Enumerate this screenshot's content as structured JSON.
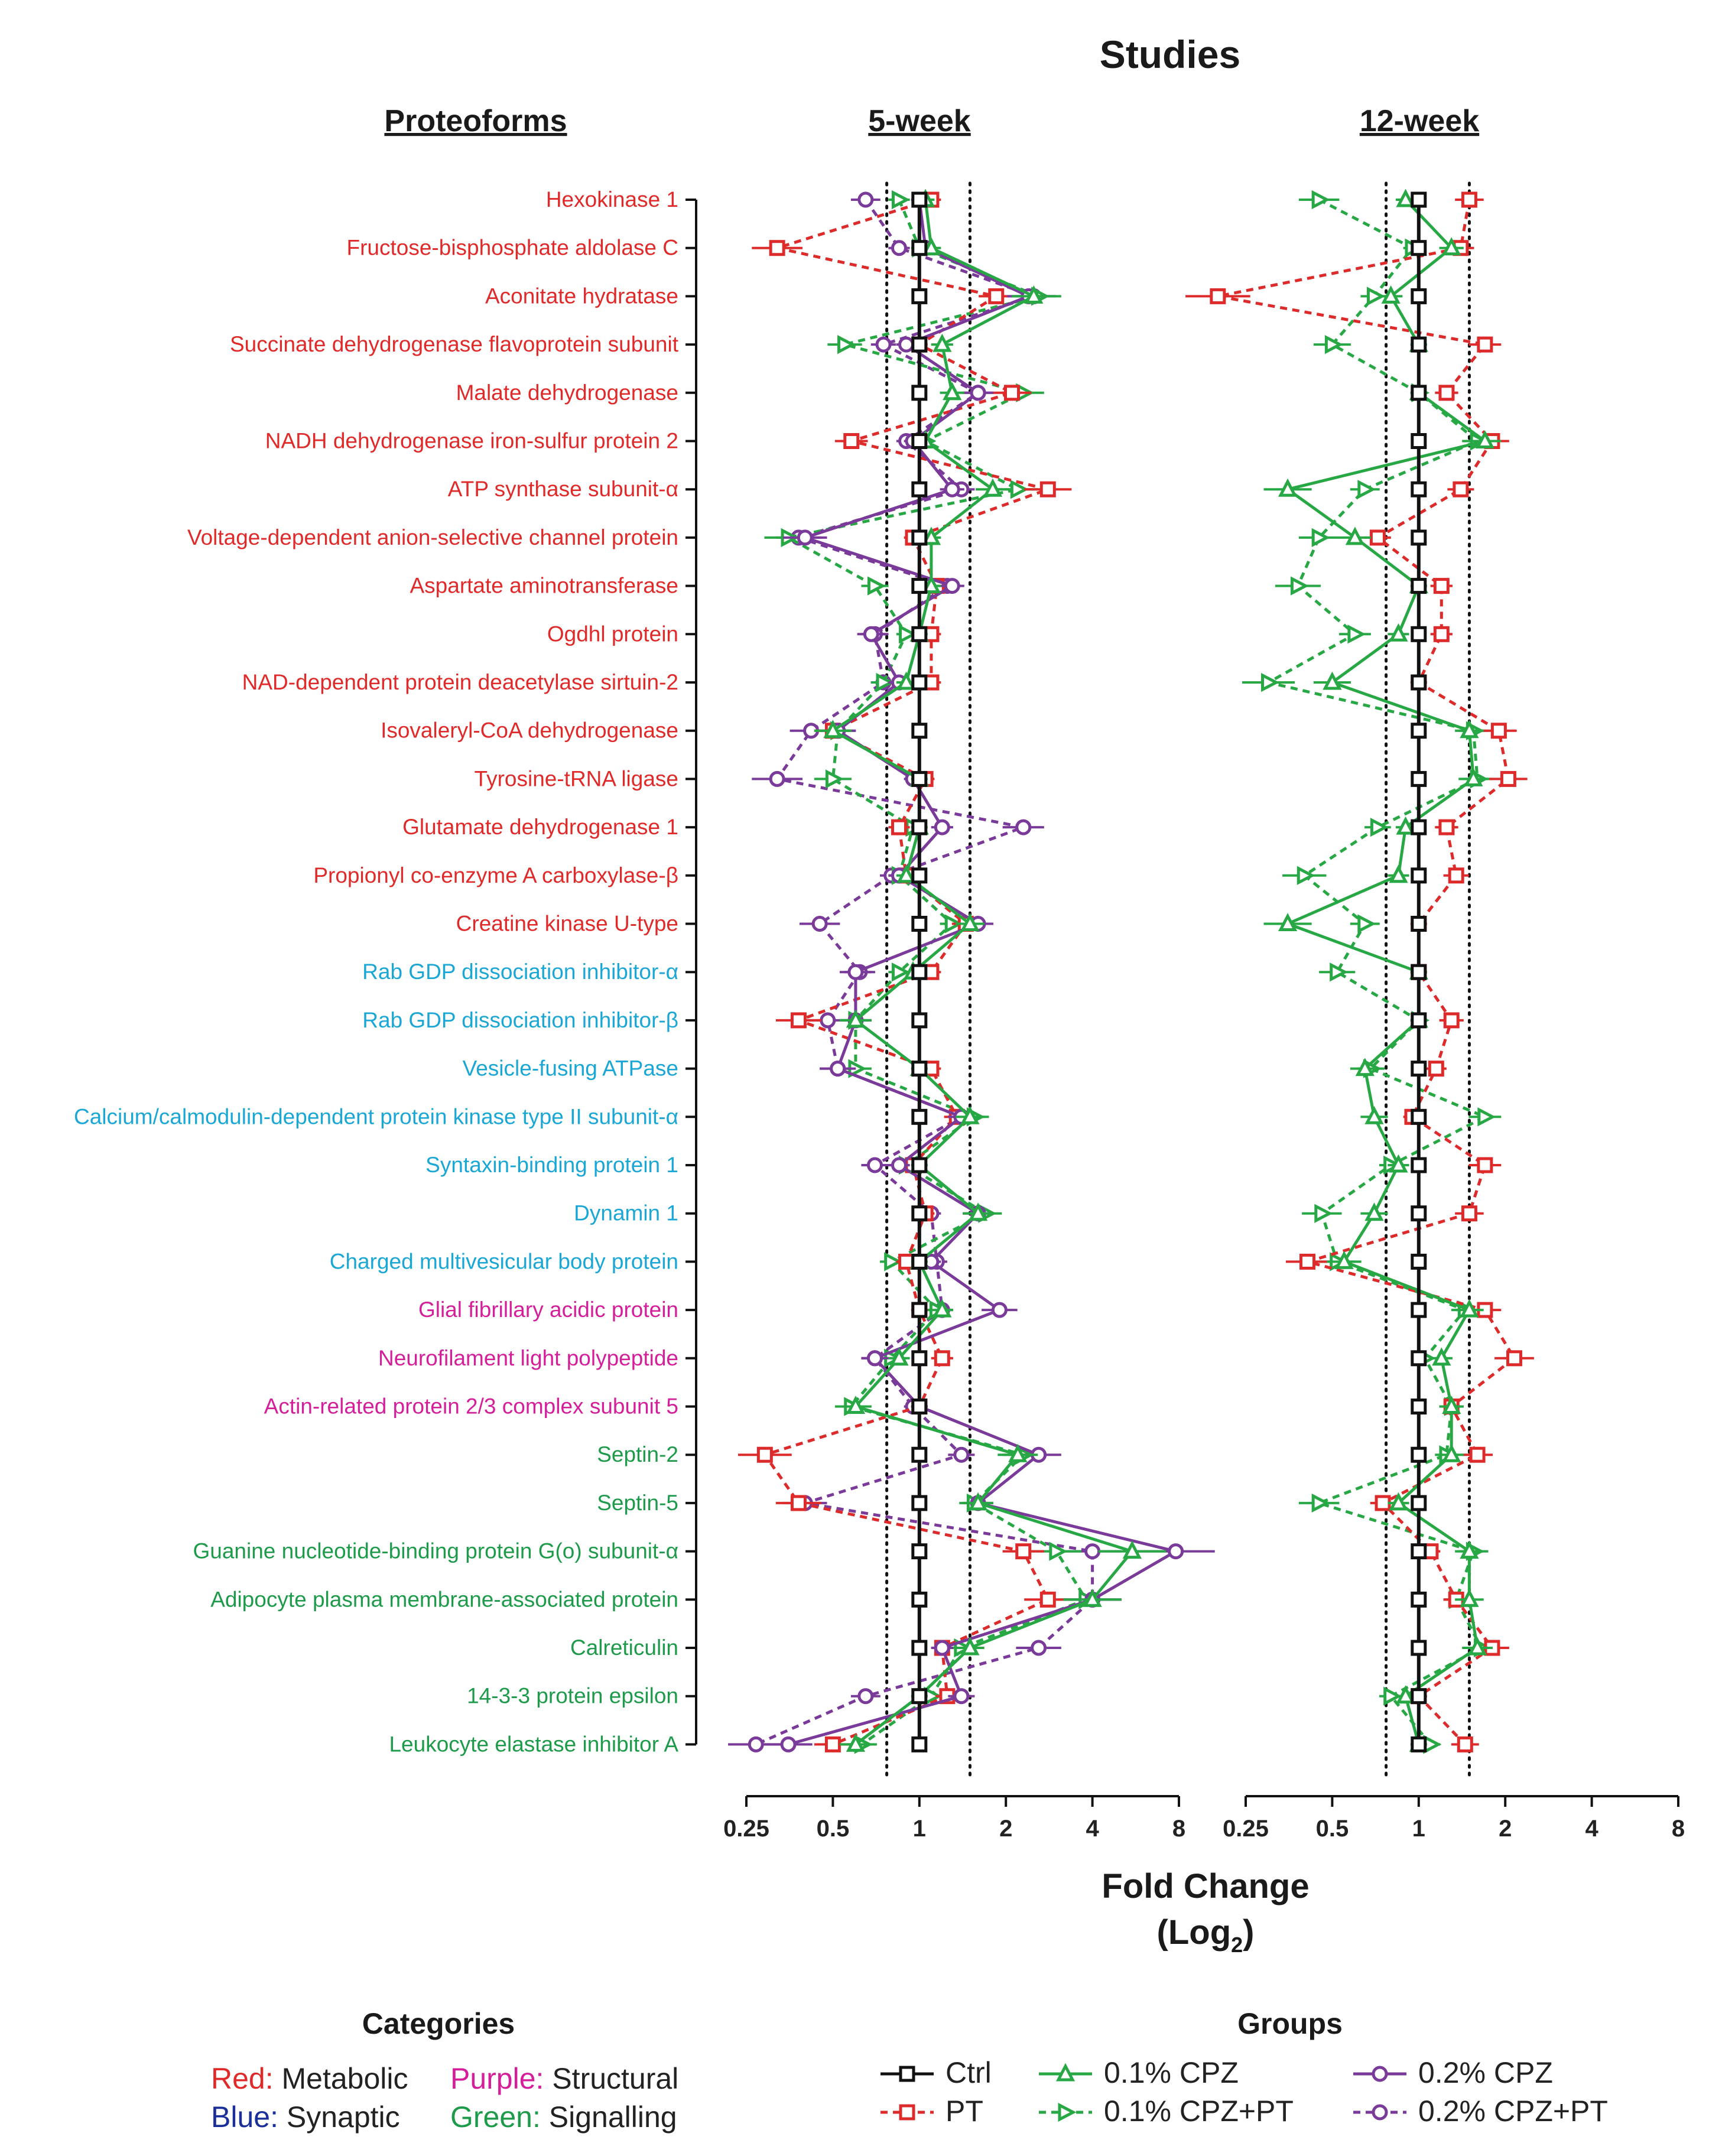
{
  "figure_title": "Studies",
  "row_header": "Proteoforms",
  "axis_title_line1": "Fold Change",
  "axis_title_line2_main": "(Log",
  "axis_title_line2_sub": "2",
  "axis_title_line2_end": ")",
  "colors": {
    "metabolic": "#e02a2a",
    "synaptic": "#1ba7d6",
    "structural": "#d41e9a",
    "signalling": "#1e9b4a",
    "ctrl": "#111111",
    "pt": "#dd2b2b",
    "cpz01": "#27a845",
    "cpz02": "#7a3a99"
  },
  "categories_legend": {
    "title": "Categories",
    "items": [
      {
        "key": "Red:",
        "text": " Metabolic",
        "color": "#e02a2a"
      },
      {
        "key": "Purple:",
        "text": " Structural",
        "color": "#d41e9a"
      },
      {
        "key": "Blue:",
        "text": " Synaptic",
        "color": "#1b2f9a"
      },
      {
        "key": "Green:",
        "text": " Signalling",
        "color": "#1e9b4a"
      }
    ]
  },
  "groups_legend": {
    "title": "Groups",
    "items": [
      "Ctrl",
      "PT",
      "0.1% CPZ",
      "0.1% CPZ+PT",
      "0.2% CPZ",
      "0.2% CPZ+PT"
    ]
  },
  "chart_data": [
    {
      "type": "scatter",
      "title": "5-week",
      "xlabel": "Fold Change (Log2)",
      "xscale": "log2",
      "xlim": [
        0.25,
        8
      ],
      "xticks": [
        "0.25",
        "0.5",
        "1",
        "2",
        "4",
        "8"
      ],
      "threshold_lines": [
        0.77,
        1.5
      ],
      "categories": [
        "Hexokinase 1",
        "Fructose-bisphosphate aldolase C",
        "Aconitate hydratase",
        "Succinate dehydrogenase flavoprotein subunit",
        "Malate dehydrogenase",
        "NADH dehydrogenase iron-sulfur protein 2",
        "ATP synthase subunit-α",
        "Voltage-dependent anion-selective channel protein",
        "Aspartate aminotransferase",
        "Ogdhl protein",
        "NAD-dependent protein deacetylase sirtuin-2",
        "Isovaleryl-CoA dehydrogenase",
        "Tyrosine-tRNA ligase",
        "Glutamate dehydrogenase 1",
        "Propionyl co-enzyme A carboxylase-β",
        "Creatine kinase U-type",
        "Rab GDP dissociation inhibitor-α",
        "Rab GDP dissociation inhibitor-β",
        "Vesicle-fusing ATPase",
        "Calcium/calmodulin-dependent protein kinase type II subunit-α",
        "Syntaxin-binding protein 1",
        "Dynamin 1",
        "Charged multivesicular body protein",
        "Glial fibrillary acidic protein",
        "Neurofilament light polypeptide",
        "Actin-related protein 2/3 complex subunit 5",
        "Septin-2",
        "Septin-5",
        "Guanine nucleotide-binding protein G(o) subunit-α",
        "Adipocyte plasma membrane-associated protein",
        "Calreticulin",
        "14-3-3 protein epsilon",
        "Leukocyte elastase inhibitor A"
      ],
      "series": [
        {
          "name": "Ctrl",
          "values": [
            1,
            1,
            1,
            1,
            1,
            1,
            1,
            1,
            1,
            1,
            1,
            1,
            1,
            1,
            1,
            1,
            1,
            1,
            1,
            1,
            1,
            1,
            1,
            1,
            1,
            1,
            1,
            1,
            1,
            1,
            1,
            1,
            1
          ]
        },
        {
          "name": "PT",
          "values": [
            1.1,
            0.32,
            1.85,
            1.0,
            2.1,
            0.58,
            2.8,
            0.95,
            1.15,
            1.1,
            1.1,
            0.5,
            1.05,
            0.85,
            0.9,
            1.45,
            1.1,
            0.38,
            1.1,
            1.35,
            0.95,
            1.05,
            0.9,
            1.0,
            1.2,
            1.0,
            0.29,
            0.38,
            2.3,
            2.8,
            1.2,
            1.25,
            0.5
          ]
        },
        {
          "name": "0.1% CPZ",
          "values": [
            1.05,
            1.1,
            2.5,
            1.2,
            1.3,
            1.05,
            1.8,
            1.1,
            1.1,
            1.0,
            0.9,
            0.5,
            1.0,
            1.0,
            0.9,
            1.5,
            0.95,
            0.6,
            1.0,
            1.5,
            1.0,
            1.6,
            1.0,
            1.2,
            0.85,
            0.6,
            2.2,
            1.6,
            5.5,
            4.0,
            1.5,
            1.0,
            0.6
          ]
        },
        {
          "name": "0.1% CPZ+PT",
          "values": [
            0.85,
            1.0,
            2.6,
            0.55,
            2.3,
            1.05,
            2.2,
            0.35,
            0.7,
            0.9,
            0.75,
            0.52,
            0.5,
            0.95,
            0.85,
            1.3,
            0.85,
            0.6,
            0.6,
            1.55,
            0.9,
            1.7,
            0.8,
            1.15,
            0.8,
            0.58,
            2.3,
            1.55,
            3.0,
            3.8,
            1.4,
            1.1,
            0.63
          ]
        },
        {
          "name": "0.2% CPZ",
          "values": [
            1.0,
            1.05,
            2.4,
            0.9,
            1.6,
            0.95,
            1.3,
            0.4,
            1.3,
            0.68,
            0.85,
            0.52,
            0.95,
            1.2,
            0.85,
            1.6,
            0.6,
            0.6,
            0.52,
            1.4,
            0.85,
            1.6,
            1.1,
            1.9,
            0.7,
            1.0,
            2.6,
            1.6,
            7.8,
            4.0,
            1.2,
            1.4,
            0.35
          ]
        },
        {
          "name": "0.2% CPZ+PT",
          "values": [
            0.65,
            0.85,
            2.5,
            0.75,
            1.6,
            0.9,
            1.4,
            0.38,
            1.25,
            0.7,
            0.75,
            0.42,
            0.32,
            2.3,
            0.8,
            0.45,
            0.62,
            0.48,
            0.52,
            1.4,
            0.7,
            1.1,
            1.15,
            1.2,
            0.7,
            0.95,
            1.4,
            0.4,
            4.0,
            4.0,
            2.6,
            0.65,
            0.27
          ]
        }
      ]
    },
    {
      "type": "scatter",
      "title": "12-week",
      "xlabel": "Fold Change (Log2)",
      "xscale": "log2",
      "xlim": [
        0.25,
        8
      ],
      "xticks": [
        "0.25",
        "0.5",
        "1",
        "2",
        "4",
        "8"
      ],
      "threshold_lines": [
        0.77,
        1.5
      ],
      "categories": [
        "Hexokinase 1",
        "Fructose-bisphosphate aldolase C",
        "Aconitate hydratase",
        "Succinate dehydrogenase flavoprotein subunit",
        "Malate dehydrogenase",
        "NADH dehydrogenase iron-sulfur protein 2",
        "ATP synthase subunit-α",
        "Voltage-dependent anion-selective channel protein",
        "Aspartate aminotransferase",
        "Ogdhl protein",
        "NAD-dependent protein deacetylase sirtuin-2",
        "Isovaleryl-CoA dehydrogenase",
        "Tyrosine-tRNA ligase",
        "Glutamate dehydrogenase 1",
        "Propionyl co-enzyme A carboxylase-β",
        "Creatine kinase U-type",
        "Rab GDP dissociation inhibitor-α",
        "Rab GDP dissociation inhibitor-β",
        "Vesicle-fusing ATPase",
        "Calcium/calmodulin-dependent protein kinase type II subunit-α",
        "Syntaxin-binding protein 1",
        "Dynamin 1",
        "Charged multivesicular body protein",
        "Glial fibrillary acidic protein",
        "Neurofilament light polypeptide",
        "Actin-related protein 2/3 complex subunit 5",
        "Septin-2",
        "Septin-5",
        "Guanine nucleotide-binding protein G(o) subunit-α",
        "Adipocyte plasma membrane-associated protein",
        "Calreticulin",
        "14-3-3 protein epsilon",
        "Leukocyte elastase inhibitor A"
      ],
      "series": [
        {
          "name": "Ctrl",
          "values": [
            1,
            1,
            1,
            1,
            1,
            1,
            1,
            1,
            1,
            1,
            1,
            1,
            1,
            1,
            1,
            1,
            1,
            1,
            1,
            1,
            1,
            1,
            1,
            1,
            1,
            1,
            1,
            1,
            1,
            1,
            1,
            1,
            1
          ]
        },
        {
          "name": "PT",
          "values": [
            1.5,
            1.4,
            0.2,
            1.7,
            1.25,
            1.8,
            1.4,
            0.72,
            1.2,
            1.2,
            1.0,
            1.9,
            2.05,
            1.25,
            1.35,
            1.0,
            1.0,
            1.3,
            1.15,
            0.95,
            1.7,
            1.5,
            0.41,
            1.7,
            2.15,
            1.3,
            1.6,
            0.75,
            1.1,
            1.35,
            1.8,
            1.0,
            1.45
          ]
        },
        {
          "name": "0.1% CPZ",
          "values": [
            0.9,
            1.3,
            0.8,
            1.0,
            1.0,
            1.7,
            0.35,
            0.6,
            1.0,
            0.85,
            0.5,
            1.5,
            1.55,
            0.9,
            0.85,
            0.35,
            1.0,
            1.0,
            0.65,
            0.7,
            0.85,
            0.7,
            0.55,
            1.5,
            1.2,
            1.3,
            1.3,
            0.85,
            1.5,
            1.5,
            1.6,
            0.9,
            1.0
          ]
        },
        {
          "name": "0.1% CPZ+PT",
          "values": [
            0.45,
            0.95,
            0.7,
            0.5,
            1.0,
            1.6,
            0.65,
            0.45,
            0.38,
            0.6,
            0.3,
            1.55,
            1.6,
            0.72,
            0.4,
            0.65,
            0.52,
            1.0,
            0.68,
            1.7,
            0.8,
            0.46,
            0.52,
            1.45,
            1.05,
            1.3,
            1.25,
            0.45,
            1.55,
            1.35,
            1.65,
            0.8,
            1.1
          ]
        }
      ]
    }
  ]
}
